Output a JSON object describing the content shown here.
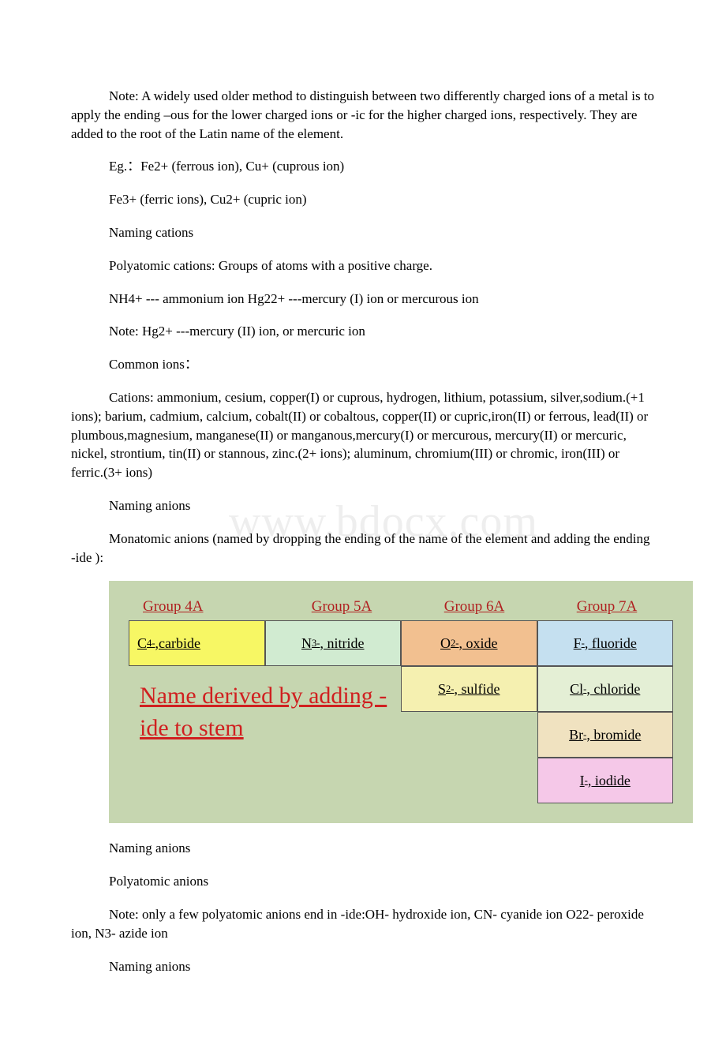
{
  "paragraphs": {
    "p1": "Note: A widely used older method to distinguish between two differently charged ions of a metal is to apply the ending –ous for the lower charged ions or -ic for the higher charged ions, respectively. They are added to the root of the Latin name of the element.",
    "p2": "Eg.：Fe2+ (ferrous ion), Cu+ (cuprous ion)",
    "p3": " Fe3+ (ferric ions), Cu2+ (cupric ion)",
    "p4": "Naming cations",
    "p5": "Polyatomic cations: Groups of atoms with a positive charge.",
    "p6": "NH4+ --- ammonium ion Hg22+ ---mercury (I) ion or mercurous ion",
    "p7": "Note: Hg2+ ---mercury (II) ion, or mercuric ion",
    "p8": "Common ions：",
    "p9": "Cations: ammonium, cesium, copper(I) or cuprous, hydrogen, lithium, potassium, silver,sodium.(+1 ions); barium, cadmium, calcium, cobalt(II) or cobaltous, copper(II) or cupric,iron(II) or ferrous, lead(II) or plumbous,magnesium, manganese(II) or manganous,mercury(I) or mercurous, mercury(II) or mercuric, nickel, strontium, tin(II) or stannous, zinc.(2+ ions); aluminum, chromium(III) or chromic, iron(III) or ferric.(3+ ions)",
    "p10": "Naming anions",
    "p11": "  Monatomic anions (named by dropping the ending of the name of the element and adding the ending -ide ):",
    "p12": "Naming anions",
    "p13": "Polyatomic anions",
    "p14": "Note: only a few polyatomic anions end in -ide:OH- hydroxide ion, CN- cyanide ion O22- peroxide ion, N3- azide ion",
    "p15": "Naming anions"
  },
  "watermark": "www.bdocx.com",
  "table": {
    "background_color": "#c6d6b0",
    "header_color": "#b02020",
    "headers": [
      "Group 4A",
      "Group 5A",
      "Group 6A",
      "Group 7A"
    ],
    "big_note": "Name derived by adding -ide to stem",
    "big_note_color": "#d02020",
    "cells": {
      "carbide": {
        "html": "C<sup>4-</sup>,carbide",
        "bg": "#f7f764"
      },
      "nitride": {
        "html": "N<sup>3-</sup>, nitride",
        "bg": "#d1ebd1"
      },
      "oxide": {
        "html": "O<sup>2-</sup>, oxide",
        "bg": "#f2c090"
      },
      "fluoride": {
        "html": "F<sup>-</sup>, fluoride",
        "bg": "#c5e0f0"
      },
      "sulfide": {
        "html": "S<sup>2-</sup>, sulfide",
        "bg": "#f5f0b0"
      },
      "chloride": {
        "html": "Cl<sup>-</sup>, chloride",
        "bg": "#e4efd5"
      },
      "bromide": {
        "html": "Br<sup>-</sup>, bromide",
        "bg": "#f0e2c0"
      },
      "iodide": {
        "html": "I<sup>-</sup>, iodide",
        "bg": "#f5c8e8"
      }
    }
  }
}
